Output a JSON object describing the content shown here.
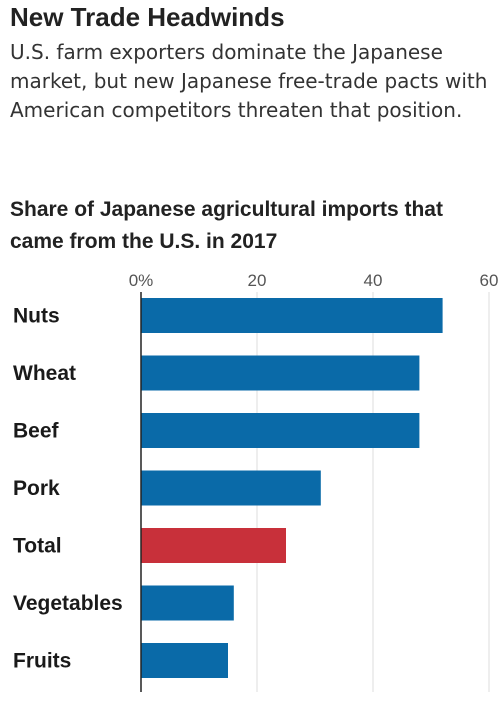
{
  "header": {
    "title": "New Trade Headwinds",
    "subtitle": "U.S. farm exporters dominate the Japanese market, but new Japanese free-trade pacts with American competitors threaten that position."
  },
  "colors": {
    "bar": "#0a6aa8",
    "highlight": "#c8303a"
  },
  "chart_data": {
    "type": "bar",
    "orientation": "horizontal",
    "title": "Share of Japanese agricultural imports that came from the U.S. in 2017",
    "xlabel": "",
    "ylabel": "",
    "categories": [
      "Nuts",
      "Wheat",
      "Beef",
      "Pork",
      "Total",
      "Vegetables",
      "Fruits"
    ],
    "values": [
      52,
      48,
      48,
      31,
      25,
      16,
      15
    ],
    "highlight_category": "Total",
    "xlim": [
      0,
      60
    ],
    "ticks": [
      0,
      20,
      40,
      60
    ],
    "tick_labels": [
      "0%",
      "20",
      "40",
      "60"
    ],
    "grid": true,
    "legend": "none"
  }
}
